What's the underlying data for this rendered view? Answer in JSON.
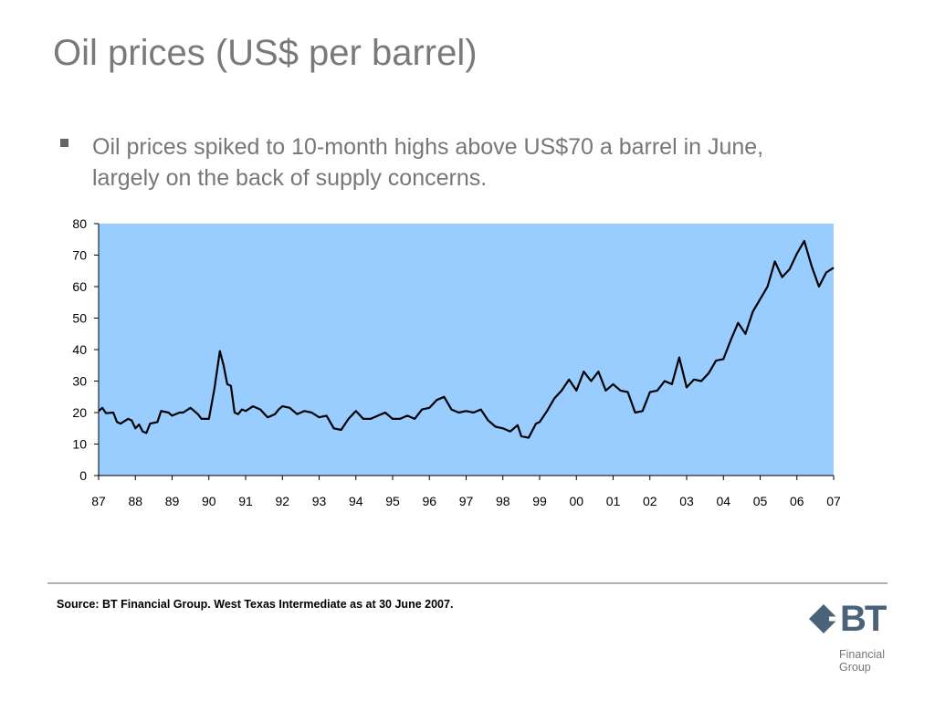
{
  "slide": {
    "title": "Oil prices (US$ per barrel)",
    "bullet": "Oil prices spiked to 10-month highs above US$70 a barrel in June, largely on the back of supply concerns.",
    "source": "Source: BT Financial Group. West Texas Intermediate as at 30 June 2007."
  },
  "logo": {
    "mark": "BT",
    "line1": "Financial",
    "line2": "Group",
    "color": "#4a6378"
  },
  "chart_data": {
    "type": "line",
    "title": "",
    "xlabel": "",
    "ylabel": "",
    "ylim": [
      0,
      80
    ],
    "xlim": [
      1987,
      2007
    ],
    "yticks": [
      0,
      10,
      20,
      30,
      40,
      50,
      60,
      70,
      80
    ],
    "xtick_labels": [
      "87",
      "88",
      "89",
      "90",
      "91",
      "92",
      "93",
      "94",
      "95",
      "96",
      "97",
      "98",
      "99",
      "00",
      "01",
      "02",
      "03",
      "04",
      "05",
      "06",
      "07"
    ],
    "grid": false,
    "plot_background": "#99ccff",
    "line_color": "#000000",
    "series": [
      {
        "name": "",
        "x": [
          1987.0,
          1987.1,
          1987.2,
          1987.4,
          1987.5,
          1987.6,
          1987.8,
          1987.9,
          1988.0,
          1988.1,
          1988.2,
          1988.3,
          1988.4,
          1988.6,
          1988.7,
          1988.9,
          1989.0,
          1989.2,
          1989.3,
          1989.5,
          1989.7,
          1989.8,
          1990.0,
          1990.15,
          1990.3,
          1990.4,
          1990.5,
          1990.6,
          1990.7,
          1990.8,
          1990.9,
          1991.0,
          1991.2,
          1991.4,
          1991.6,
          1991.8,
          1991.9,
          1992.0,
          1992.2,
          1992.4,
          1992.6,
          1992.8,
          1993.0,
          1993.2,
          1993.4,
          1993.6,
          1993.8,
          1994.0,
          1994.2,
          1994.4,
          1994.6,
          1994.8,
          1995.0,
          1995.2,
          1995.4,
          1995.6,
          1995.8,
          1996.0,
          1996.2,
          1996.4,
          1996.6,
          1996.8,
          1997.0,
          1997.2,
          1997.4,
          1997.6,
          1997.8,
          1998.0,
          1998.2,
          1998.4,
          1998.5,
          1998.7,
          1998.9,
          1999.0,
          1999.2,
          1999.4,
          1999.6,
          1999.8,
          2000.0,
          2000.2,
          2000.4,
          2000.6,
          2000.8,
          2001.0,
          2001.2,
          2001.4,
          2001.6,
          2001.8,
          2002.0,
          2002.2,
          2002.4,
          2002.6,
          2002.8,
          2003.0,
          2003.2,
          2003.4,
          2003.6,
          2003.8,
          2004.0,
          2004.2,
          2004.4,
          2004.6,
          2004.8,
          2005.0,
          2005.2,
          2005.4,
          2005.6,
          2005.8,
          2006.0,
          2006.2,
          2006.4,
          2006.6,
          2006.8,
          2007.0
        ],
        "y": [
          20.5,
          21.5,
          19.8,
          20.0,
          17.0,
          16.5,
          18.0,
          17.5,
          15.0,
          16.2,
          14.0,
          13.5,
          16.5,
          17.0,
          20.5,
          20.0,
          19.0,
          20.0,
          20.0,
          21.5,
          19.5,
          18.0,
          18.0,
          27.5,
          39.5,
          35.0,
          29.0,
          28.5,
          20.0,
          19.5,
          21.0,
          20.5,
          22.0,
          21.0,
          18.5,
          19.5,
          21.0,
          22.0,
          21.5,
          19.5,
          20.5,
          20.0,
          18.5,
          19.0,
          15.0,
          14.5,
          18.0,
          20.5,
          18.0,
          18.0,
          19.0,
          20.0,
          18.0,
          18.0,
          19.0,
          18.0,
          21.0,
          21.5,
          24.0,
          25.0,
          21.0,
          20.0,
          20.5,
          20.0,
          21.0,
          17.5,
          15.5,
          15.0,
          14.0,
          16.0,
          12.5,
          12.0,
          16.5,
          17.0,
          20.5,
          24.5,
          27.0,
          30.5,
          27.0,
          33.0,
          30.0,
          33.0,
          27.0,
          29.0,
          27.0,
          26.5,
          20.0,
          20.5,
          26.5,
          27.0,
          30.0,
          29.0,
          37.5,
          28.0,
          30.5,
          30.0,
          32.5,
          36.5,
          37.0,
          43.0,
          48.5,
          45.0,
          52.0,
          56.0,
          60.0,
          68.0,
          63.0,
          65.5,
          70.5,
          74.5,
          66.5,
          60.0,
          64.5,
          66.0
        ]
      }
    ]
  }
}
